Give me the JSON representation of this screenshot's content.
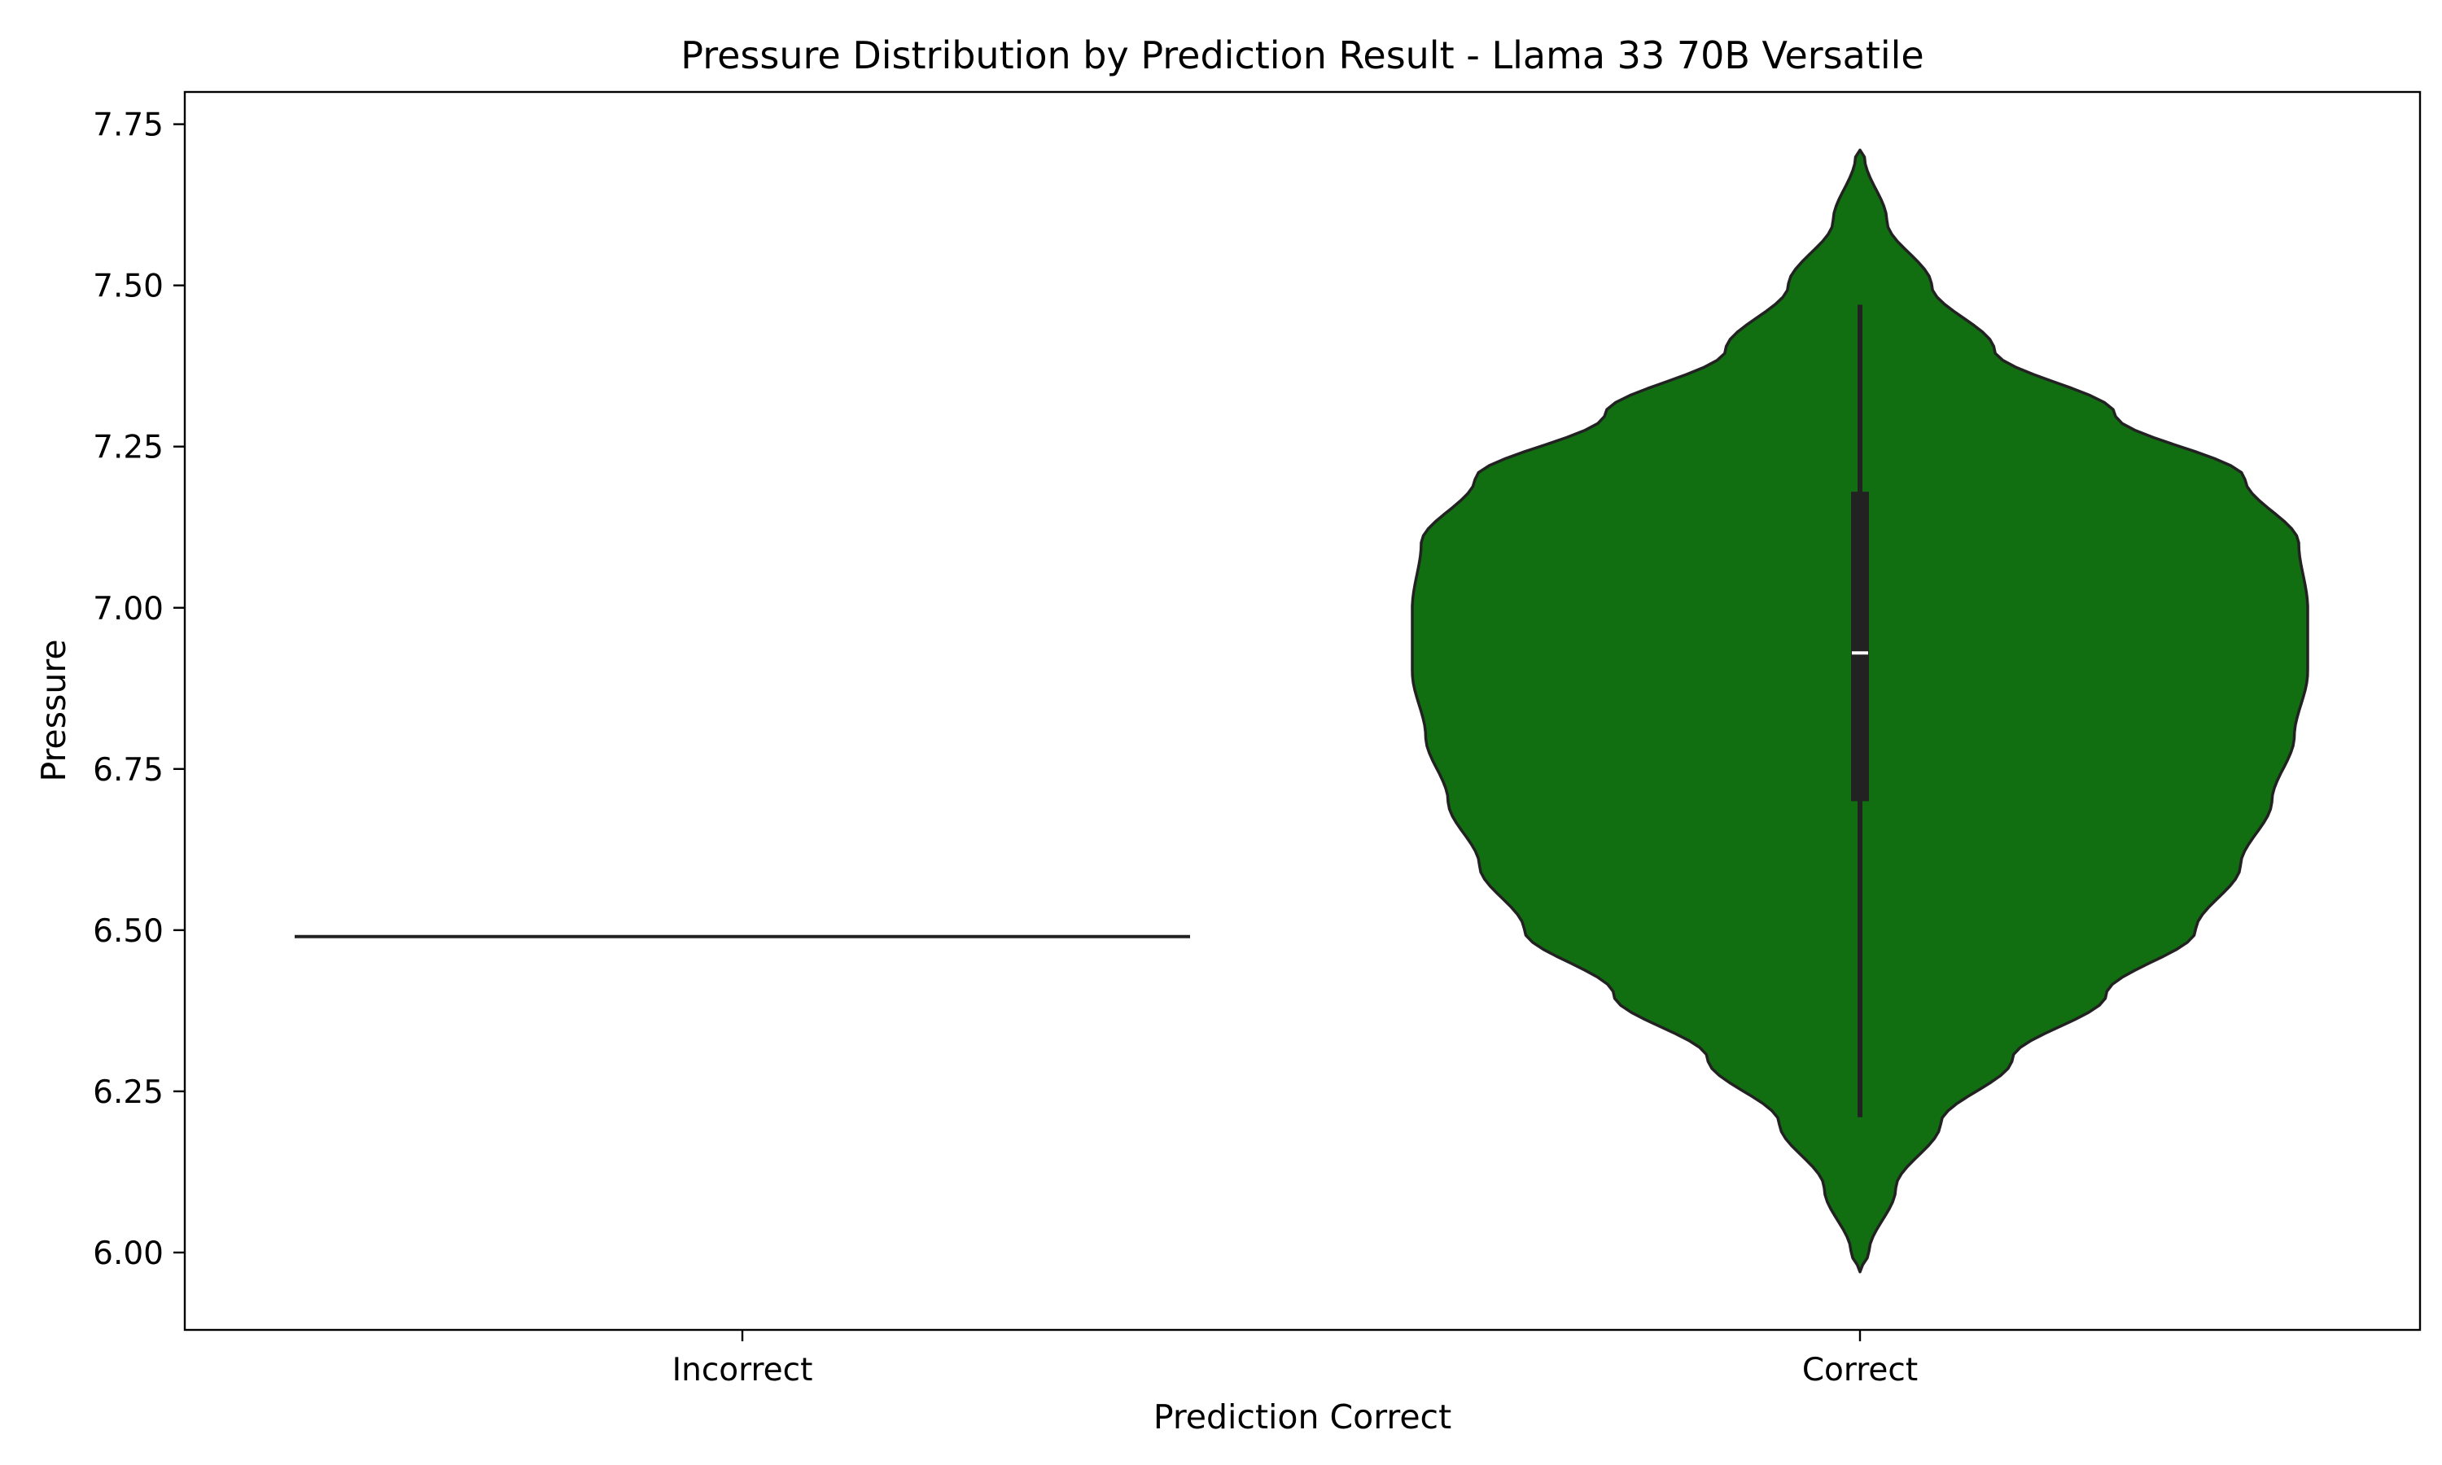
{
  "chart_data": {
    "type": "violin",
    "title": "Pressure Distribution by Prediction Result - Llama 33 70B Versatile",
    "xlabel": "Prediction Correct",
    "ylabel": "Pressure",
    "categories": [
      "Incorrect",
      "Correct"
    ],
    "ylim": [
      5.88,
      7.8
    ],
    "yticks": [
      "6.00",
      "6.25",
      "6.50",
      "6.75",
      "7.00",
      "7.25",
      "7.50",
      "7.75"
    ],
    "grid": false,
    "legend": "none",
    "colors": {
      "violin_fill": "#116f11",
      "outline": "#222222",
      "median": "#ffffff"
    },
    "violins": [
      {
        "category": "Incorrect",
        "single_value": 6.49,
        "profile": []
      },
      {
        "category": "Correct",
        "min": 6.21,
        "q1": 6.7,
        "median": 6.93,
        "q3": 7.18,
        "max": 7.47,
        "kde_min": 5.97,
        "kde_max": 7.71,
        "profile": [
          [
            5.97,
            0.0
          ],
          [
            6.0,
            0.02
          ],
          [
            6.1,
            0.08
          ],
          [
            6.2,
            0.18
          ],
          [
            6.3,
            0.34
          ],
          [
            6.4,
            0.55
          ],
          [
            6.5,
            0.75
          ],
          [
            6.6,
            0.85
          ],
          [
            6.7,
            0.92
          ],
          [
            6.8,
            0.97
          ],
          [
            6.9,
            1.0
          ],
          [
            7.0,
            1.0
          ],
          [
            7.1,
            0.98
          ],
          [
            7.2,
            0.86
          ],
          [
            7.3,
            0.57
          ],
          [
            7.4,
            0.3
          ],
          [
            7.5,
            0.16
          ],
          [
            7.6,
            0.06
          ],
          [
            7.7,
            0.01
          ],
          [
            7.71,
            0.0
          ]
        ]
      }
    ]
  }
}
